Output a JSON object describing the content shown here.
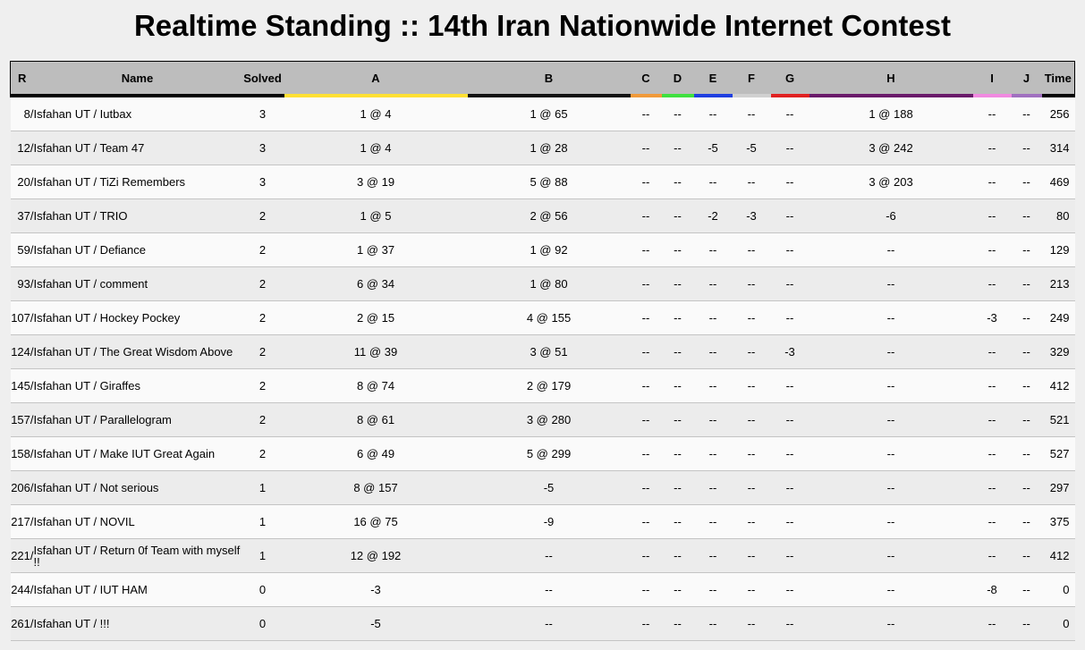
{
  "title": "Realtime Standing :: 14th Iran Nationwide Internet Contest",
  "columns": {
    "rank": "R",
    "name": "Name",
    "solved": "Solved",
    "time": "Time",
    "problems": [
      {
        "label": "A",
        "color": "#ffe033"
      },
      {
        "label": "B",
        "color": "#111111"
      },
      {
        "label": "C",
        "color": "#f09a3a"
      },
      {
        "label": "D",
        "color": "#3fe03f"
      },
      {
        "label": "E",
        "color": "#1f3fe0"
      },
      {
        "label": "F",
        "color": "#d0d0d0"
      },
      {
        "label": "G",
        "color": "#e02020"
      },
      {
        "label": "H",
        "color": "#6a1a6a"
      },
      {
        "label": "I",
        "color": "#f08ae0"
      },
      {
        "label": "J",
        "color": "#a070c0"
      }
    ]
  },
  "rows": [
    {
      "rank": "8/",
      "name": "Isfahan UT / Iutbax",
      "solved": "3",
      "results": [
        "1 @ 4",
        "1 @ 65",
        "--",
        "--",
        "--",
        "--",
        "--",
        "1 @ 188",
        "--",
        "--"
      ],
      "time": "256"
    },
    {
      "rank": "12/",
      "name": "Isfahan UT / Team 47",
      "solved": "3",
      "results": [
        "1 @ 4",
        "1 @ 28",
        "--",
        "--",
        "-5",
        "-5",
        "--",
        "3 @ 242",
        "--",
        "--"
      ],
      "time": "314"
    },
    {
      "rank": "20/",
      "name": "Isfahan UT / TiZi Remembers",
      "solved": "3",
      "results": [
        "3 @ 19",
        "5 @ 88",
        "--",
        "--",
        "--",
        "--",
        "--",
        "3 @ 203",
        "--",
        "--"
      ],
      "time": "469"
    },
    {
      "rank": "37/",
      "name": "Isfahan UT / TRIO",
      "solved": "2",
      "results": [
        "1 @ 5",
        "2 @ 56",
        "--",
        "--",
        "-2",
        "-3",
        "--",
        "-6",
        "--",
        "--"
      ],
      "time": "80"
    },
    {
      "rank": "59/",
      "name": "Isfahan UT / Defiance",
      "solved": "2",
      "results": [
        "1 @ 37",
        "1 @ 92",
        "--",
        "--",
        "--",
        "--",
        "--",
        "--",
        "--",
        "--"
      ],
      "time": "129"
    },
    {
      "rank": "93/",
      "name": "Isfahan UT / comment",
      "solved": "2",
      "results": [
        "6 @ 34",
        "1 @ 80",
        "--",
        "--",
        "--",
        "--",
        "--",
        "--",
        "--",
        "--"
      ],
      "time": "213"
    },
    {
      "rank": "107/",
      "name": "Isfahan UT / Hockey Pockey",
      "solved": "2",
      "results": [
        "2 @ 15",
        "4 @ 155",
        "--",
        "--",
        "--",
        "--",
        "--",
        "--",
        "-3",
        "--"
      ],
      "time": "249"
    },
    {
      "rank": "124/",
      "name": "Isfahan UT / The Great Wisdom Above",
      "solved": "2",
      "results": [
        "11 @ 39",
        "3 @ 51",
        "--",
        "--",
        "--",
        "--",
        "-3",
        "--",
        "--",
        "--"
      ],
      "time": "329"
    },
    {
      "rank": "145/",
      "name": "Isfahan UT / Giraffes",
      "solved": "2",
      "results": [
        "8 @ 74",
        "2 @ 179",
        "--",
        "--",
        "--",
        "--",
        "--",
        "--",
        "--",
        "--"
      ],
      "time": "412"
    },
    {
      "rank": "157/",
      "name": "Isfahan UT / Parallelogram",
      "solved": "2",
      "results": [
        "8 @ 61",
        "3 @ 280",
        "--",
        "--",
        "--",
        "--",
        "--",
        "--",
        "--",
        "--"
      ],
      "time": "521"
    },
    {
      "rank": "158/",
      "name": "Isfahan UT / Make IUT Great Again",
      "solved": "2",
      "results": [
        "6 @ 49",
        "5 @ 299",
        "--",
        "--",
        "--",
        "--",
        "--",
        "--",
        "--",
        "--"
      ],
      "time": "527"
    },
    {
      "rank": "206/",
      "name": "Isfahan UT / Not serious",
      "solved": "1",
      "results": [
        "8 @ 157",
        "-5",
        "--",
        "--",
        "--",
        "--",
        "--",
        "--",
        "--",
        "--"
      ],
      "time": "297"
    },
    {
      "rank": "217/",
      "name": "Isfahan UT / NOVIL",
      "solved": "1",
      "results": [
        "16 @ 75",
        "-9",
        "--",
        "--",
        "--",
        "--",
        "--",
        "--",
        "--",
        "--"
      ],
      "time": "375"
    },
    {
      "rank": "221/",
      "name": "Isfahan UT / Return 0f Team with myself !!",
      "solved": "1",
      "results": [
        "12 @ 192",
        "--",
        "--",
        "--",
        "--",
        "--",
        "--",
        "--",
        "--",
        "--"
      ],
      "time": "412"
    },
    {
      "rank": "244/",
      "name": "Isfahan UT / IUT HAM",
      "solved": "0",
      "results": [
        "-3",
        "--",
        "--",
        "--",
        "--",
        "--",
        "--",
        "--",
        "-8",
        "--"
      ],
      "time": "0"
    },
    {
      "rank": "261/",
      "name": "Isfahan UT / !!!",
      "solved": "0",
      "results": [
        "-5",
        "--",
        "--",
        "--",
        "--",
        "--",
        "--",
        "--",
        "--",
        "--"
      ],
      "time": "0"
    }
  ]
}
